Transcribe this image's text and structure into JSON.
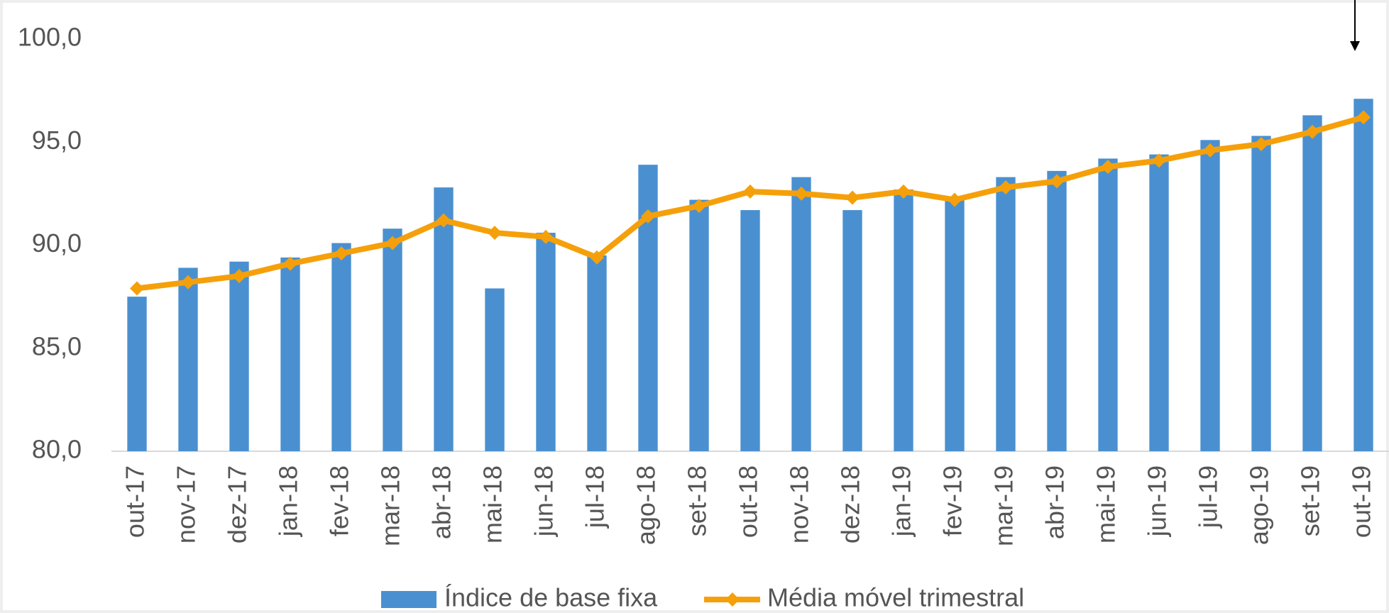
{
  "chart_data": {
    "type": "bar_line",
    "categories": [
      "out-17",
      "nov-17",
      "dez-17",
      "jan-18",
      "fev-18",
      "mar-18",
      "abr-18",
      "mai-18",
      "jun-18",
      "jul-18",
      "ago-18",
      "set-18",
      "out-18",
      "nov-18",
      "dez-18",
      "jan-19",
      "fev-19",
      "mar-19",
      "abr-19",
      "mai-19",
      "jun-19",
      "jul-19",
      "ago-19",
      "set-19",
      "out-19"
    ],
    "series": [
      {
        "name": "Índice de base fixa",
        "type": "bar",
        "color": "#4a90d0",
        "values": [
          87.5,
          88.9,
          89.2,
          89.4,
          90.1,
          90.8,
          92.8,
          87.9,
          90.6,
          89.5,
          93.9,
          92.2,
          91.7,
          93.3,
          91.7,
          92.7,
          92.2,
          93.3,
          93.6,
          94.2,
          94.4,
          95.1,
          95.3,
          96.3,
          97.1
        ]
      },
      {
        "name": "Média móvel trimestral",
        "type": "line",
        "color": "#f5a00a",
        "values": [
          87.9,
          88.2,
          88.5,
          89.1,
          89.6,
          90.1,
          91.2,
          90.6,
          90.4,
          89.4,
          91.4,
          91.9,
          92.6,
          92.5,
          92.3,
          92.6,
          92.2,
          92.8,
          93.1,
          93.8,
          94.1,
          94.6,
          94.9,
          95.5,
          96.2
        ]
      }
    ],
    "ylim": [
      80,
      100
    ],
    "yticks": [
      {
        "value": 80,
        "label": "80,0"
      },
      {
        "value": 85,
        "label": "85,0"
      },
      {
        "value": 90,
        "label": "90,0"
      },
      {
        "value": 95,
        "label": "95,0"
      },
      {
        "value": 100,
        "label": "100,0"
      }
    ],
    "legend": "bottom"
  }
}
